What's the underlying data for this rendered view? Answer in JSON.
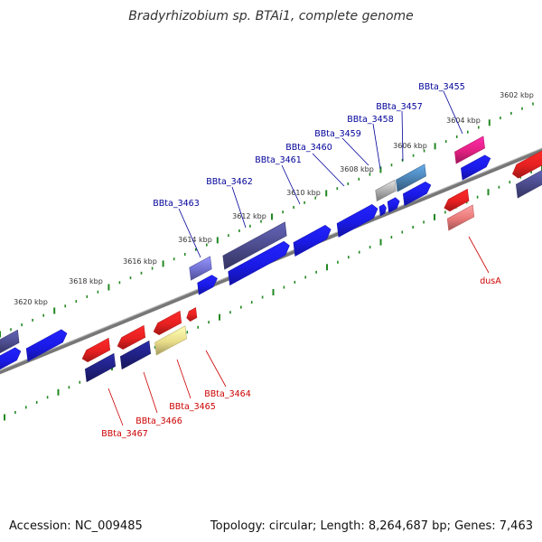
{
  "header": {
    "title": "Bradyrhizobium sp. BTAi1, complete genome"
  },
  "footer": {
    "accession": "Accession: NC_009485",
    "summary": "Topology: circular; Length: 8,264,687 bp; Genes: 7,463"
  },
  "colors": {
    "backbone": "#777777",
    "tick_green": "#228822",
    "label_forward": "#000099",
    "label_reverse": "#cc0000",
    "gene_blue": "#1a1ae6",
    "gene_navy": "#202080",
    "gene_slate": "#4a4a8a",
    "gene_lavender": "#7070d0",
    "gene_red": "#e62020",
    "gene_lightred": "#e87878",
    "gene_yellow": "#e8dc88",
    "gene_grey": "#aaaaaa",
    "gene_steel": "#4a80b0",
    "gene_pink": "#e02080"
  },
  "scale_labels": [
    "3602 kbp",
    "3604 kbp",
    "3606 kbp",
    "3608 kbp",
    "3610 kbp",
    "3612 kbp",
    "3614 kbp",
    "3616 kbp",
    "3618 kbp",
    "3620 kbp"
  ],
  "forward_labels": [
    "BBta_3455",
    "BBta_3457",
    "BBta_3458",
    "BBta_3459",
    "BBta_3460",
    "BBta_3461",
    "BBta_3462",
    "BBta_3463"
  ],
  "reverse_labels": [
    "dusA",
    "BBta_3464",
    "BBta_3465",
    "BBta_3466",
    "BBta_3467"
  ]
}
